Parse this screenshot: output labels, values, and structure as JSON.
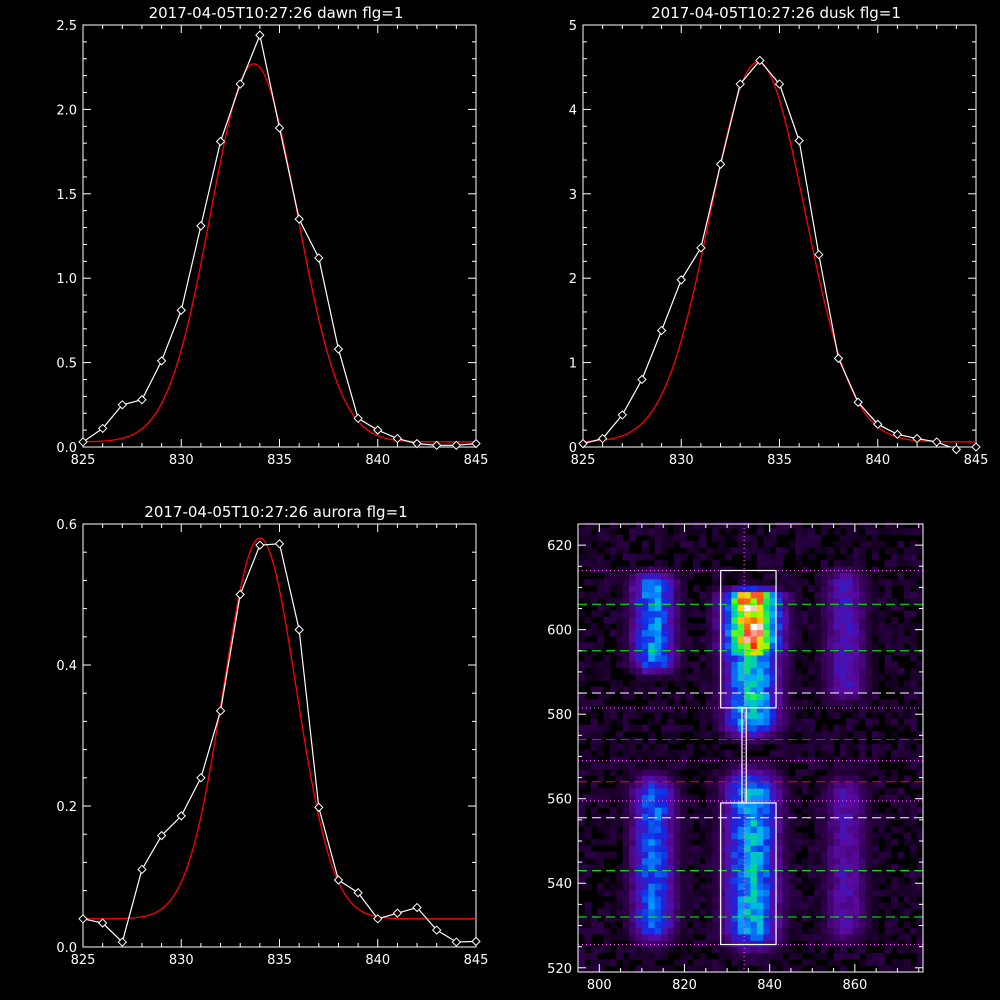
{
  "colors": {
    "background": "#000000",
    "axes": "#ffffff",
    "data": "#ffffff",
    "fit": "#ff0000",
    "green_line": "#00ff00",
    "red_line": "#ff0000",
    "white_line": "#ffffff",
    "magenta_line": "#ff66ff"
  },
  "chart_data": [
    {
      "id": "dawn",
      "type": "line",
      "title": "2017-04-05T10:27:26 dawn flg=1",
      "xlabel": "",
      "ylabel": "",
      "xlim": [
        825,
        845
      ],
      "ylim": [
        0,
        2.5
      ],
      "xticks": [
        825,
        830,
        835,
        840,
        845
      ],
      "yticks": [
        0.0,
        0.5,
        1.0,
        1.5,
        2.0,
        2.5
      ],
      "ytick_labels": [
        "0.0",
        "0.5",
        "1.0",
        "1.5",
        "2.0",
        "2.5"
      ],
      "grid": false,
      "series": [
        {
          "kind": "data",
          "marker": "diamond",
          "x": [
            825,
            826,
            827,
            828,
            829,
            830,
            831,
            832,
            833,
            834,
            835,
            836,
            837,
            838,
            839,
            840,
            841,
            842,
            843,
            844,
            845
          ],
          "y": [
            0.03,
            0.11,
            0.25,
            0.28,
            0.51,
            0.81,
            1.31,
            1.81,
            2.15,
            2.44,
            1.89,
            1.35,
            1.12,
            0.58,
            0.17,
            0.1,
            0.05,
            0.02,
            0.01,
            0.01,
            0.02
          ]
        },
        {
          "kind": "fit",
          "model": "gaussian",
          "amplitude": 2.24,
          "center": 833.7,
          "sigma": 2.2,
          "baseline": 0.03
        }
      ]
    },
    {
      "id": "dusk",
      "type": "line",
      "title": "2017-04-05T10:27:26 dusk flg=1",
      "xlabel": "",
      "ylabel": "",
      "xlim": [
        825,
        845
      ],
      "ylim": [
        0,
        5
      ],
      "xticks": [
        825,
        830,
        835,
        840,
        845
      ],
      "yticks": [
        0,
        1,
        2,
        3,
        4,
        5
      ],
      "ytick_labels": [
        "0",
        "1",
        "2",
        "3",
        "4",
        "5"
      ],
      "grid": false,
      "series": [
        {
          "kind": "data",
          "marker": "diamond",
          "x": [
            825,
            826,
            827,
            828,
            829,
            830,
            831,
            832,
            833,
            834,
            835,
            836,
            837,
            838,
            839,
            840,
            841,
            842,
            843,
            844,
            845
          ],
          "y": [
            0.04,
            0.1,
            0.38,
            0.8,
            1.38,
            1.98,
            2.36,
            3.35,
            4.3,
            4.58,
            4.3,
            3.63,
            2.28,
            1.05,
            0.53,
            0.27,
            0.15,
            0.1,
            0.06,
            -0.03,
            0.0
          ]
        },
        {
          "kind": "fit",
          "model": "gaussian",
          "amplitude": 4.5,
          "center": 833.9,
          "sigma": 2.4,
          "baseline": 0.06
        }
      ]
    },
    {
      "id": "aurora",
      "type": "line",
      "title": "2017-04-05T10:27:26 aurora flg=1",
      "xlabel": "",
      "ylabel": "",
      "xlim": [
        825,
        845
      ],
      "ylim": [
        0,
        0.6
      ],
      "xticks": [
        825,
        830,
        835,
        840,
        845
      ],
      "yticks": [
        0.0,
        0.2,
        0.4,
        0.6
      ],
      "ytick_labels": [
        "0.0",
        "0.2",
        "0.4",
        "0.6"
      ],
      "grid": false,
      "series": [
        {
          "kind": "data",
          "marker": "diamond",
          "x": [
            825,
            826,
            827,
            828,
            829,
            830,
            831,
            832,
            833,
            834,
            835,
            836,
            837,
            838,
            839,
            840,
            841,
            842,
            843,
            844,
            845
          ],
          "y": [
            0.04,
            0.034,
            0.007,
            0.11,
            0.158,
            0.186,
            0.24,
            0.335,
            0.5,
            0.57,
            0.572,
            0.45,
            0.198,
            0.095,
            0.077,
            0.04,
            0.048,
            0.056,
            0.024,
            0.007,
            0.008
          ]
        },
        {
          "kind": "fit",
          "model": "gaussian",
          "amplitude": 0.54,
          "center": 834.0,
          "sigma": 1.85,
          "baseline": 0.04
        }
      ]
    },
    {
      "id": "image",
      "type": "heatmap",
      "title": "",
      "xlabel": "",
      "ylabel": "",
      "xlim": [
        795,
        876
      ],
      "ylim": [
        519,
        625
      ],
      "xticks": [
        800,
        820,
        840,
        860
      ],
      "yticks": [
        520,
        540,
        560,
        580,
        600,
        620
      ],
      "colormap": "rainbow (black-purple-blue-cyan-green-yellow-red-white)",
      "emission_columns": [
        {
          "center_x": 812,
          "width": 8,
          "intensity_bands": [
            {
              "y_center": 601,
              "y_halfwidth": 9,
              "level": 0.5
            },
            {
              "y_center": 545,
              "y_halfwidth": 15,
              "level": 0.45
            }
          ]
        },
        {
          "center_x": 835,
          "width": 10,
          "intensity_bands": [
            {
              "y_center": 601,
              "y_halfwidth": 6,
              "level": 1.0
            },
            {
              "y_center": 590,
              "y_halfwidth": 12,
              "level": 0.6
            },
            {
              "y_center": 545,
              "y_halfwidth": 16,
              "level": 0.55
            }
          ]
        },
        {
          "center_x": 857,
          "width": 8,
          "intensity_bands": [
            {
              "y_center": 598,
              "y_halfwidth": 12,
              "level": 0.28
            },
            {
              "y_center": 545,
              "y_halfwidth": 15,
              "level": 0.25
            }
          ]
        }
      ],
      "boxes": [
        {
          "x": [
            828.5,
            841.5
          ],
          "y": [
            581.5,
            614
          ]
        },
        {
          "x": [
            828.5,
            841.5
          ],
          "y": [
            525.5,
            559
          ]
        }
      ],
      "connector_x": [
        833.5,
        834.5
      ],
      "connector_y": [
        559,
        581.5
      ],
      "vertical_dotted_x": 834,
      "horizontal_lines": [
        {
          "y": 614,
          "style": "dotted",
          "color": "magenta"
        },
        {
          "y": 606,
          "style": "dashed",
          "color": "green"
        },
        {
          "y": 595,
          "style": "dashed",
          "color": "green"
        },
        {
          "y": 585,
          "style": "dashed",
          "color": "white"
        },
        {
          "y": 581.5,
          "style": "dotted",
          "color": "magenta"
        },
        {
          "y": 574,
          "style": "dashed",
          "color": "red"
        },
        {
          "y": 569,
          "style": "dotted",
          "color": "magenta"
        },
        {
          "y": 564,
          "style": "dashed",
          "color": "red"
        },
        {
          "y": 559.5,
          "style": "dotted",
          "color": "magenta"
        },
        {
          "y": 555.5,
          "style": "dashed",
          "color": "white"
        },
        {
          "y": 543,
          "style": "dashed",
          "color": "green"
        },
        {
          "y": 532,
          "style": "dashed",
          "color": "green"
        },
        {
          "y": 525.5,
          "style": "dotted",
          "color": "magenta"
        }
      ]
    }
  ]
}
